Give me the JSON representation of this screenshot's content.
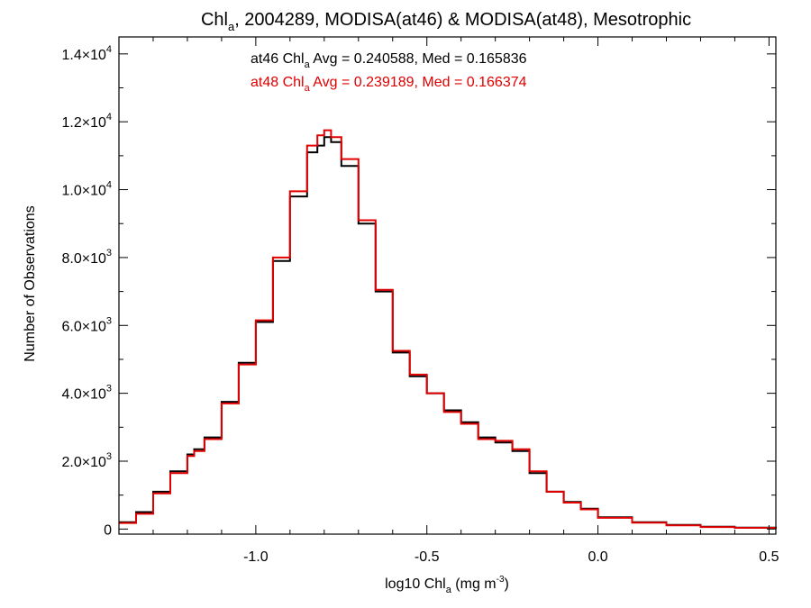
{
  "chart_data": {
    "type": "line",
    "step": true,
    "title": {
      "main": "Chl",
      "sub": "a",
      "rest": ", 2004289, MODISA(at46) & MODISA(at48), Mesotrophic"
    },
    "xlabel": {
      "main": "log10 Chl",
      "sub": "a",
      "rest": " (mg m",
      "sup": "-3",
      "end": ")"
    },
    "ylabel": "Number of Observations",
    "xlim": [
      -1.4,
      0.52
    ],
    "ylim": [
      -150,
      14500
    ],
    "x_ticks": [
      {
        "value": -1.0,
        "label": "-1.0"
      },
      {
        "value": -0.5,
        "label": "-0.5"
      },
      {
        "value": 0.0,
        "label": "0.0"
      },
      {
        "value": 0.5,
        "label": "0.5"
      }
    ],
    "y_ticks": [
      {
        "value": 0,
        "mant": "0",
        "exp": ""
      },
      {
        "value": 2000,
        "mant": "2.0×10",
        "exp": "3"
      },
      {
        "value": 4000,
        "mant": "4.0×10",
        "exp": "3"
      },
      {
        "value": 6000,
        "mant": "6.0×10",
        "exp": "3"
      },
      {
        "value": 8000,
        "mant": "8.0×10",
        "exp": "3"
      },
      {
        "value": 10000,
        "mant": "1.0×10",
        "exp": "4"
      },
      {
        "value": 12000,
        "mant": "1.2×10",
        "exp": "4"
      },
      {
        "value": 14000,
        "mant": "1.4×10",
        "exp": "4"
      }
    ],
    "grid": false,
    "annotations": [
      {
        "prefix": "at46 Chl",
        "sub": "a",
        "text": " Avg = 0.240588, Med = 0.165836",
        "color": "#000000"
      },
      {
        "prefix": "at48 Chl",
        "sub": "a",
        "text": " Avg = 0.239189, Med = 0.166374",
        "color": "#e00000"
      }
    ],
    "series": [
      {
        "color": "#000000",
        "x": [
          -1.4,
          -1.35,
          -1.3,
          -1.25,
          -1.2,
          -1.18,
          -1.15,
          -1.1,
          -1.05,
          -1.0,
          -0.95,
          -0.9,
          -0.85,
          -0.82,
          -0.8,
          -0.78,
          -0.75,
          -0.7,
          -0.65,
          -0.6,
          -0.55,
          -0.5,
          -0.45,
          -0.4,
          -0.35,
          -0.3,
          -0.25,
          -0.2,
          -0.15,
          -0.1,
          -0.05,
          0.0,
          0.1,
          0.2,
          0.3,
          0.4,
          0.52
        ],
        "y": [
          200,
          500,
          1100,
          1700,
          2200,
          2350,
          2700,
          3750,
          4900,
          6100,
          7900,
          9800,
          11100,
          11300,
          11550,
          11400,
          10700,
          9000,
          7000,
          5200,
          4500,
          4000,
          3500,
          3150,
          2700,
          2550,
          2300,
          1650,
          1100,
          800,
          600,
          350,
          200,
          120,
          70,
          40,
          10
        ]
      },
      {
        "color": "#e00000",
        "x": [
          -1.4,
          -1.35,
          -1.3,
          -1.25,
          -1.2,
          -1.18,
          -1.15,
          -1.1,
          -1.05,
          -1.0,
          -0.95,
          -0.9,
          -0.85,
          -0.82,
          -0.8,
          -0.78,
          -0.75,
          -0.7,
          -0.65,
          -0.6,
          -0.55,
          -0.5,
          -0.45,
          -0.4,
          -0.35,
          -0.3,
          -0.25,
          -0.2,
          -0.15,
          -0.1,
          -0.05,
          0.0,
          0.1,
          0.2,
          0.3,
          0.4,
          0.52
        ],
        "y": [
          180,
          450,
          1050,
          1650,
          2150,
          2300,
          2650,
          3700,
          4850,
          6150,
          8000,
          9950,
          11300,
          11600,
          11750,
          11550,
          10900,
          9100,
          7050,
          5250,
          4550,
          4000,
          3450,
          3100,
          2650,
          2600,
          2350,
          1700,
          1100,
          780,
          580,
          330,
          190,
          110,
          60,
          35,
          10
        ]
      }
    ]
  }
}
